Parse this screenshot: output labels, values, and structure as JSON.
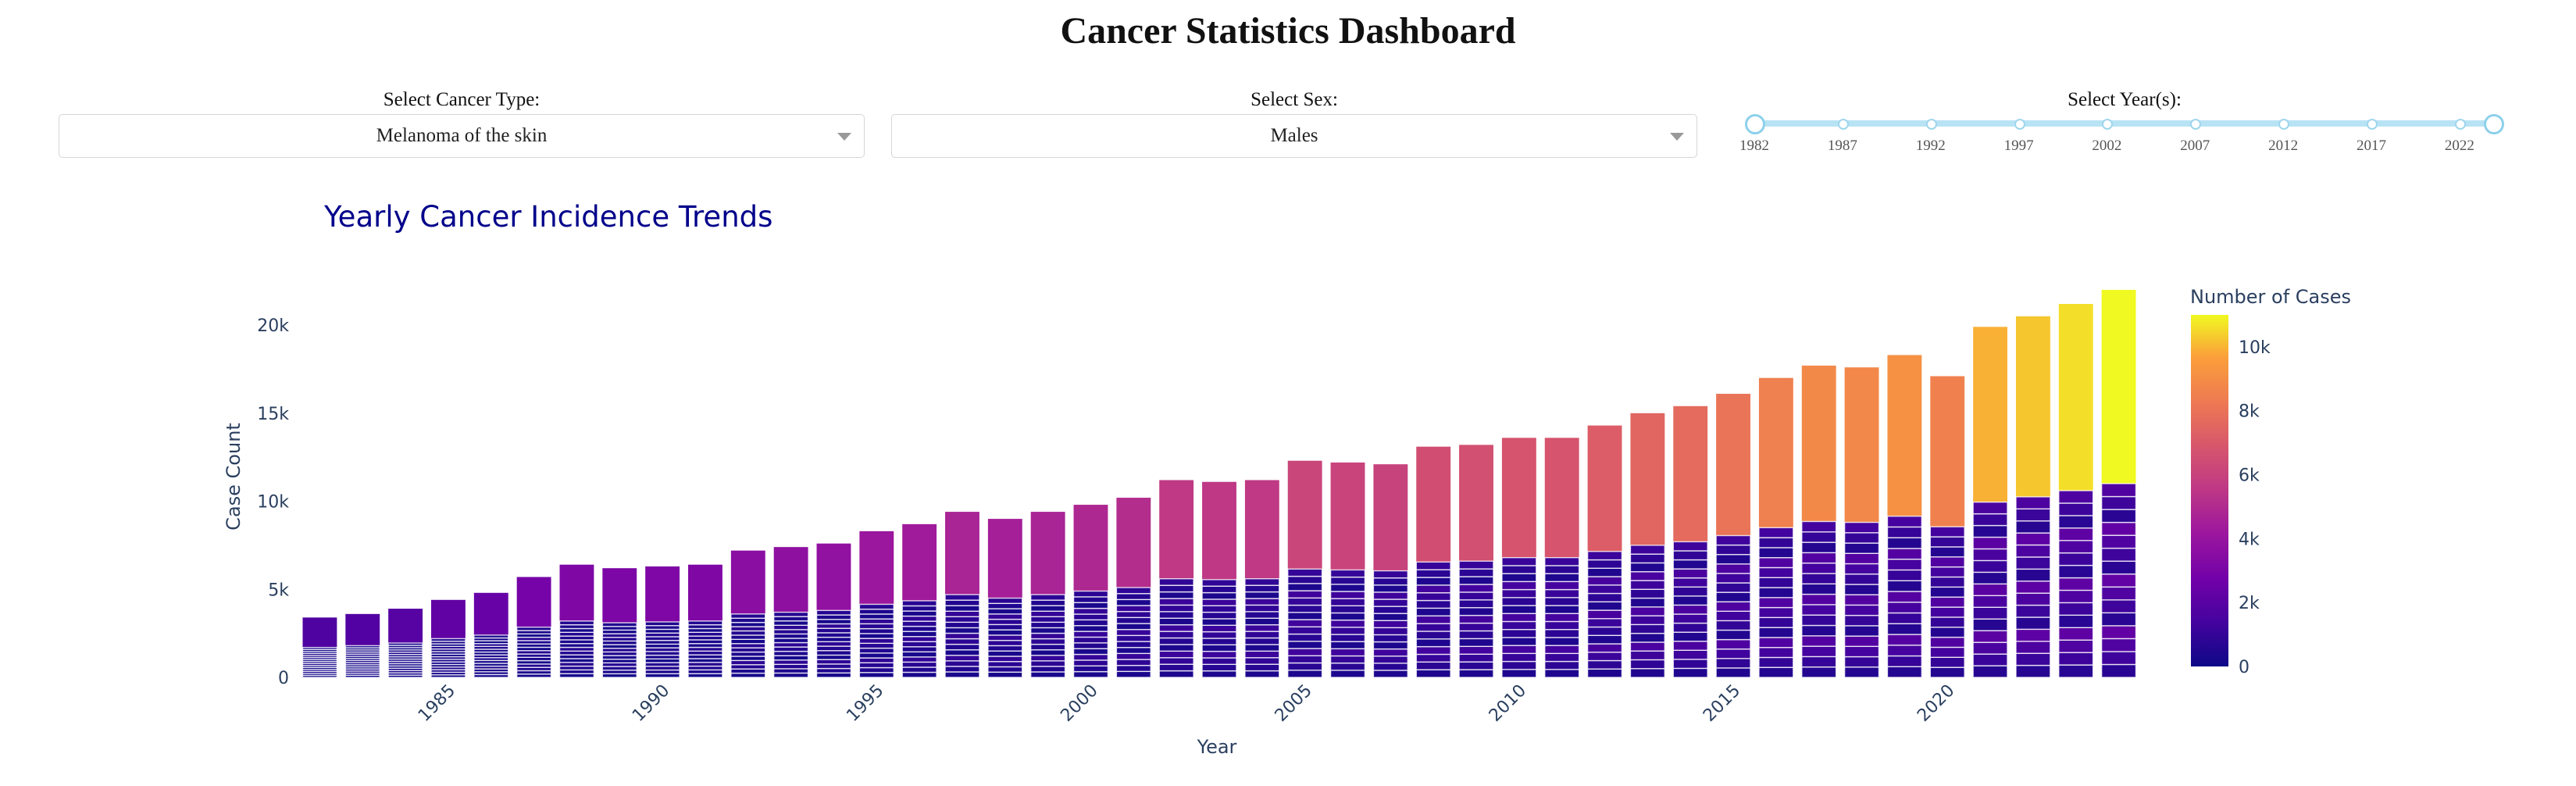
{
  "dashboard_title": "Cancer Statistics Dashboard",
  "controls": {
    "cancer_type": {
      "label": "Select Cancer Type:",
      "value": "Melanoma of the skin"
    },
    "sex": {
      "label": "Select Sex:",
      "value": "Males"
    },
    "years": {
      "label": "Select Year(s):",
      "marks": [
        "1982",
        "1987",
        "1992",
        "1997",
        "2002",
        "2007",
        "2012",
        "2017",
        "2022"
      ],
      "range": [
        1982,
        2024
      ]
    }
  },
  "colors": {
    "title": "#00008b",
    "axis_text": "#2a3f5f"
  },
  "chart_data": {
    "type": "bar",
    "title": "Yearly Cancer Incidence Trends",
    "xlabel": "Year",
    "ylabel": "Case Count",
    "x": [
      1982,
      1983,
      1984,
      1985,
      1986,
      1987,
      1988,
      1989,
      1990,
      1991,
      1992,
      1993,
      1994,
      1995,
      1996,
      1997,
      1998,
      1999,
      2000,
      2001,
      2002,
      2003,
      2004,
      2005,
      2006,
      2007,
      2008,
      2009,
      2010,
      2011,
      2012,
      2013,
      2014,
      2015,
      2016,
      2017,
      2018,
      2019,
      2020,
      2021,
      2022,
      2023,
      2024
    ],
    "values": [
      3400,
      3600,
      3900,
      4400,
      4800,
      5700,
      6400,
      6200,
      6300,
      6400,
      7200,
      7400,
      7600,
      8300,
      8700,
      9400,
      9000,
      9400,
      9800,
      10200,
      11200,
      11100,
      11200,
      12300,
      12200,
      12100,
      13100,
      13200,
      13600,
      13600,
      14300,
      15000,
      15400,
      16100,
      17000,
      17700,
      17600,
      18300,
      17100,
      19900,
      20500,
      21200,
      22000
    ],
    "stacked": true,
    "x_ticks": [
      "1985",
      "1990",
      "1995",
      "2000",
      "2005",
      "2010",
      "2015",
      "2020"
    ],
    "y_ticks": [
      "0",
      "5k",
      "10k",
      "15k",
      "20k"
    ],
    "ylim": [
      0,
      22000
    ],
    "colorbar": {
      "title": "Number of Cases",
      "ticks": [
        "0",
        "2k",
        "4k",
        "6k",
        "8k",
        "10k"
      ],
      "range": [
        0,
        11000
      ]
    }
  }
}
